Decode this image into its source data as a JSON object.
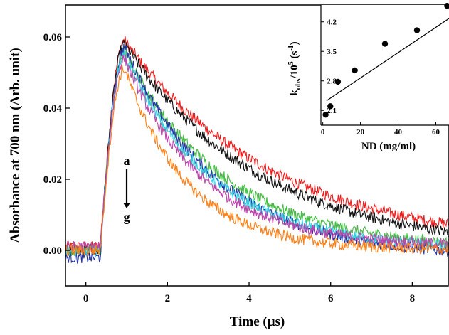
{
  "chart_data": [
    {
      "type": "line",
      "xlabel": "Time (μs)",
      "ylabel": "Absorbance at 700 nm (Arb. unit)",
      "xlim": [
        -0.5,
        8.9
      ],
      "ylim": [
        -0.01,
        0.069
      ],
      "xticks": [
        0,
        2,
        4,
        6,
        8
      ],
      "xtick_labels": [
        "0",
        "2",
        "4",
        "6",
        "8"
      ],
      "yticks": [
        0.0,
        0.02,
        0.04,
        0.06
      ],
      "ytick_labels": [
        "0.00",
        "0.02",
        "0.04",
        "0.06"
      ],
      "grid": false,
      "annotations": [
        {
          "text": "a",
          "x": 1.0,
          "y": 0.024
        },
        {
          "text": "g",
          "x": 1.0,
          "y": 0.011
        }
      ],
      "series": [
        {
          "color": "#ee1c1c",
          "rise_start": 0.35,
          "peak_time": 0.95,
          "peak": 0.059,
          "baseline": 0.001,
          "tau": 3.6
        },
        {
          "color": "#111111",
          "rise_start": 0.35,
          "peak_time": 0.95,
          "peak": 0.058,
          "baseline": 0.0,
          "tau": 3.3
        },
        {
          "color": "#44bb44",
          "rise_start": 0.35,
          "peak_time": 0.95,
          "peak": 0.056,
          "baseline": 0.0,
          "tau": 2.45
        },
        {
          "color": "#2233aa",
          "rise_start": 0.35,
          "peak_time": 0.95,
          "peak": 0.057,
          "baseline": -0.002,
          "tau": 2.3
        },
        {
          "color": "#33ccdd",
          "rise_start": 0.35,
          "peak_time": 0.95,
          "peak": 0.055,
          "baseline": 0.0,
          "tau": 2.15
        },
        {
          "color": "#bb44aa",
          "rise_start": 0.35,
          "peak_time": 0.95,
          "peak": 0.054,
          "baseline": 0.001,
          "tau": 1.9
        },
        {
          "color": "#ff7f14",
          "rise_start": 0.35,
          "peak_time": 0.95,
          "peak": 0.051,
          "baseline": 0.0,
          "tau": 1.55
        }
      ]
    },
    {
      "type": "scatter",
      "xlabel": "ND (mg/ml)",
      "ylabel": "k",
      "ylabel_sub": "obs",
      "ylabel_rest": "/10",
      "ylabel_sup": "5",
      "ylabel_unit": " (s",
      "ylabel_unit_sup": "-1",
      "ylabel_close": ")",
      "xlim": [
        -1,
        67
      ],
      "ylim": [
        1.75,
        4.6
      ],
      "xticks": [
        0,
        20,
        40,
        60
      ],
      "xtick_labels": [
        "0",
        "20",
        "40",
        "60"
      ],
      "yticks": [
        2.1,
        2.8,
        3.5,
        4.2
      ],
      "ytick_labels": [
        "2.1",
        "2.8",
        "3.5",
        "4.2"
      ],
      "points": [
        {
          "x": 1.5,
          "y": 2.0
        },
        {
          "x": 4,
          "y": 2.2
        },
        {
          "x": 8,
          "y": 2.78
        },
        {
          "x": 17,
          "y": 3.05
        },
        {
          "x": 33,
          "y": 3.68
        },
        {
          "x": 50,
          "y": 4.0
        },
        {
          "x": 66,
          "y": 4.58
        }
      ],
      "fit": {
        "x": [
          2,
          67
        ],
        "y": [
          2.33,
          4.28
        ]
      }
    }
  ]
}
